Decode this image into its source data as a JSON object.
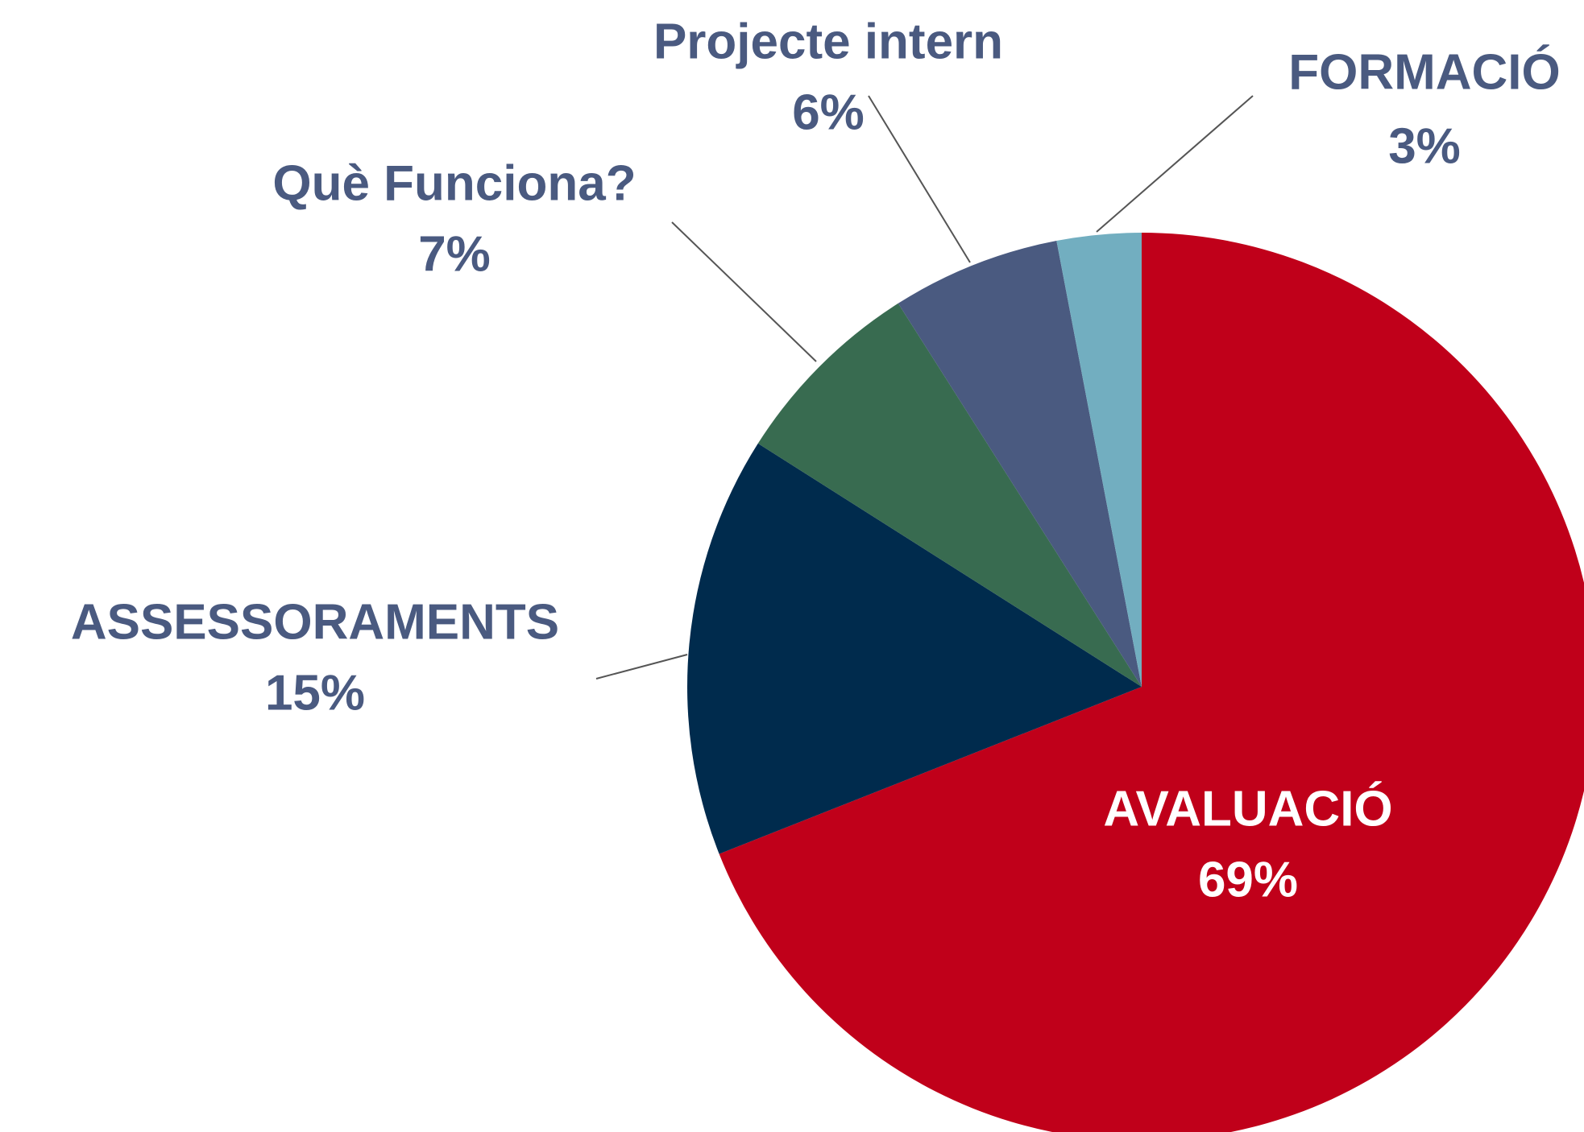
{
  "chart_data": {
    "type": "pie",
    "categories": [
      "AVALUACIÓ",
      "ASSESSORAMENTS",
      "Què Funciona?",
      "Projecte intern",
      "FORMACIÓ"
    ],
    "values": [
      69,
      15,
      7,
      6,
      3
    ],
    "value_labels": [
      "69%",
      "15%",
      "7%",
      "6%",
      "3%"
    ],
    "colors": [
      "#c0001a",
      "#002b4d",
      "#386b50",
      "#4a5a80",
      "#72aec0"
    ]
  }
}
